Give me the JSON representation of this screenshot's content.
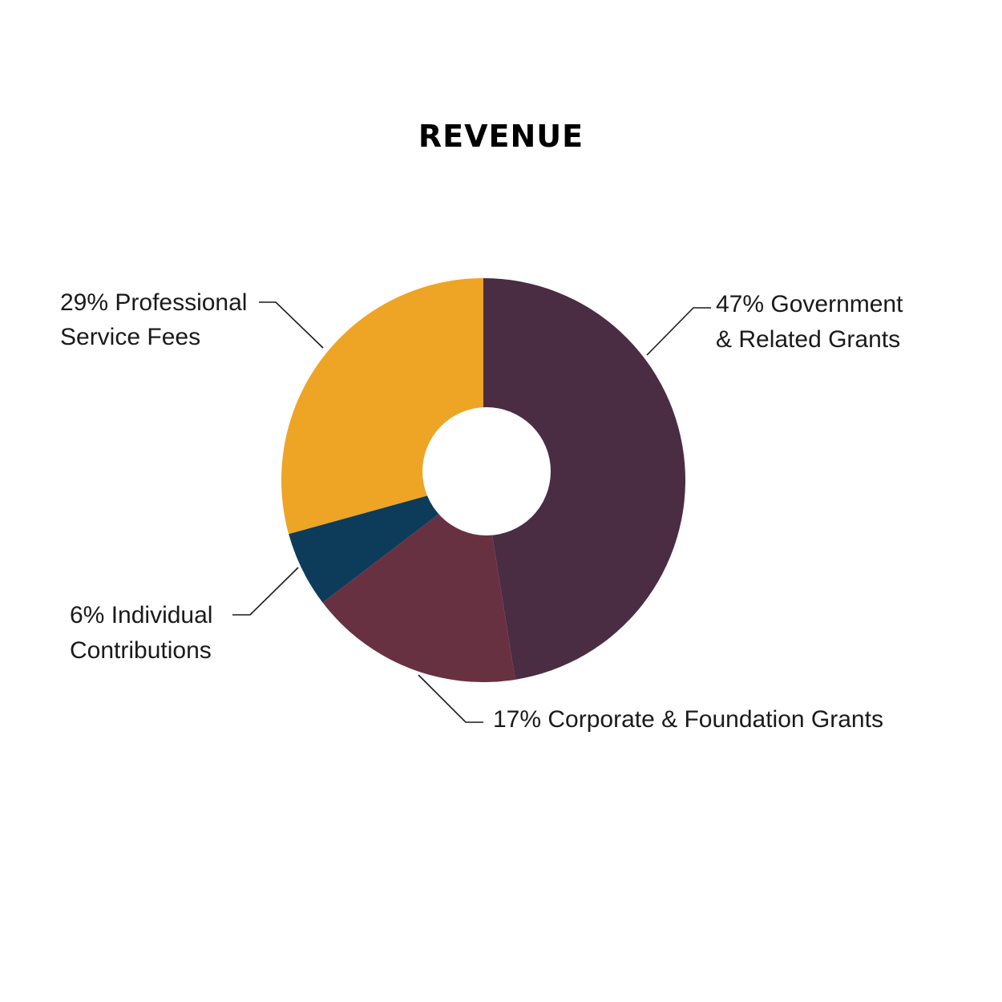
{
  "chart_data": {
    "type": "pie",
    "title": "REVENUE",
    "donut": true,
    "categories": [
      "Government & Related Grants",
      "Corporate & Foundation Grants",
      "Individual Contributions",
      "Professional Service Fees"
    ],
    "values": [
      47,
      17,
      6,
      29
    ],
    "unit": "%",
    "colors": [
      "#4a2c43",
      "#683142",
      "#0d3c5a",
      "#eea424"
    ],
    "labels": [
      [
        "47% Government",
        "& Related Grants"
      ],
      [
        "17% Corporate & Foundation Grants"
      ],
      [
        "6% Individual",
        "Contributions"
      ],
      [
        "29% Professional",
        "Service Fees"
      ]
    ]
  }
}
